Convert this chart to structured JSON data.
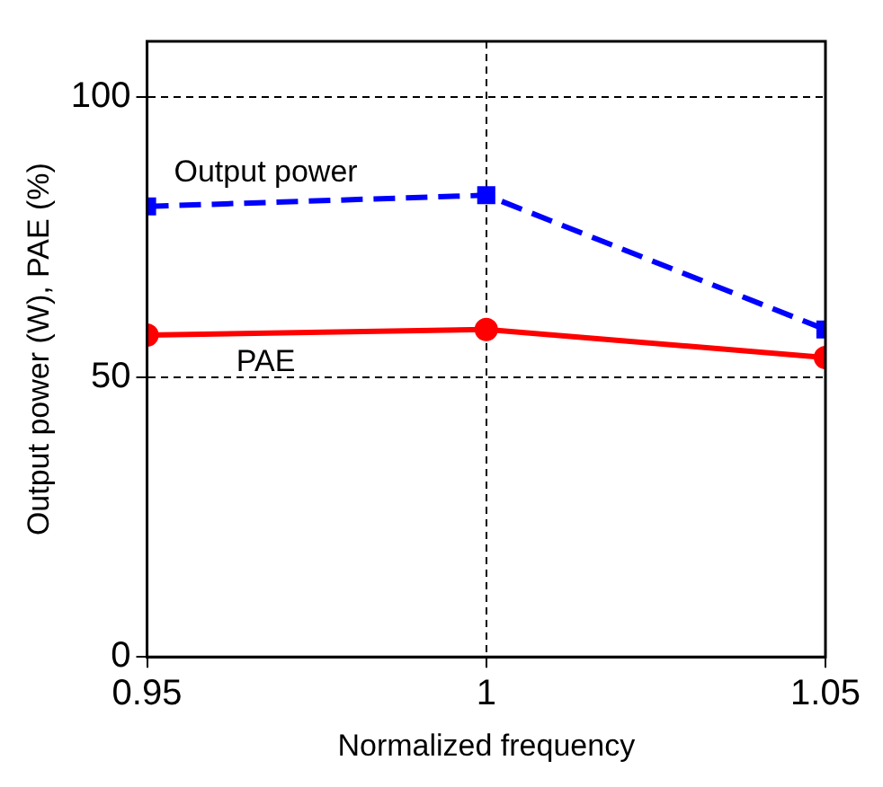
{
  "chart_data": {
    "type": "line",
    "xlabel": "Normalized frequency",
    "ylabel": "Output power (W), PAE (%)",
    "x": [
      0.95,
      1,
      1.05
    ],
    "series": [
      {
        "name": "Output power",
        "color": "#0000ff",
        "values": [
          80.5,
          82.5,
          58.5
        ],
        "marker": "square",
        "line_style": "dashed"
      },
      {
        "name": "PAE",
        "color": "#ff0000",
        "values": [
          57.5,
          58.5,
          53.5
        ],
        "marker": "circle",
        "line_style": "solid"
      }
    ],
    "xlim": [
      0.95,
      1.05
    ],
    "xticks": [
      0.95,
      1,
      1.05
    ],
    "ylim": [
      0,
      110
    ],
    "yticks": [
      0,
      50,
      100
    ],
    "grid": true,
    "legend": false
  }
}
